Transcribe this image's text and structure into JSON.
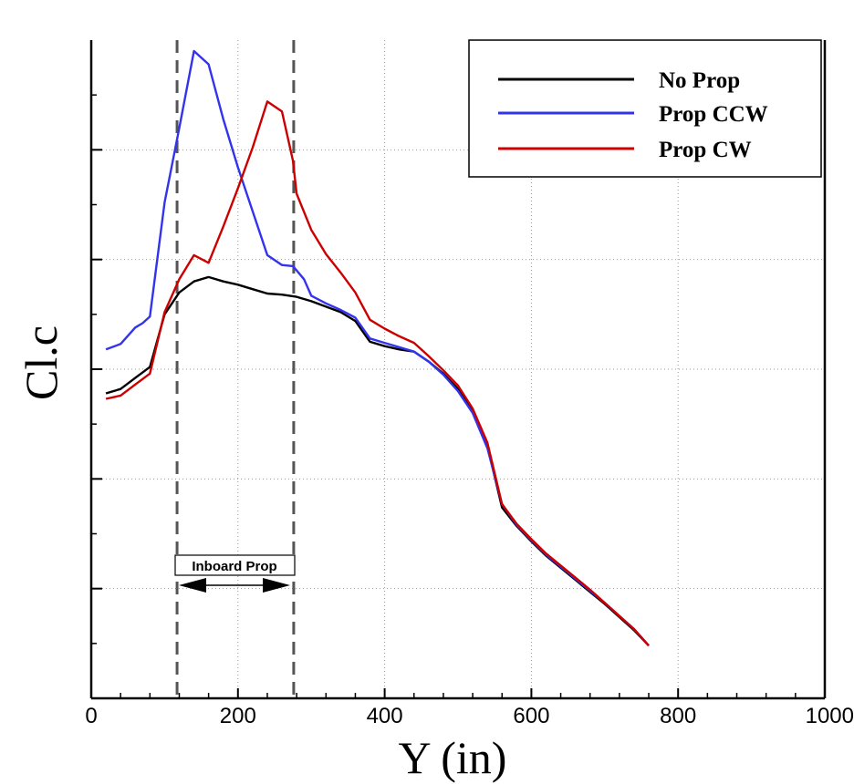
{
  "chart_data": {
    "type": "line",
    "title": "",
    "xlabel": "Y (in)",
    "ylabel": "Cl.c",
    "xlim": [
      0,
      1000
    ],
    "ylim": [
      0,
      6
    ],
    "xticks": [
      0,
      200,
      400,
      600,
      800,
      1000
    ],
    "xtick_labels": [
      "0",
      "200",
      "400",
      "600",
      "800",
      "1000"
    ],
    "yticks_major": [
      1,
      2,
      3,
      4,
      5
    ],
    "yticks_minor": [
      0.5,
      1.5,
      2.5,
      3.5,
      4.5,
      5.5
    ],
    "grid": true,
    "legend_position": "top-right",
    "series": [
      {
        "name": "No Prop",
        "color": "#000000",
        "x": [
          20,
          40,
          60,
          80,
          100,
          120,
          140,
          160,
          180,
          200,
          220,
          240,
          260,
          280,
          300,
          320,
          340,
          360,
          380,
          400,
          420,
          440,
          460,
          480,
          500,
          520,
          540,
          560,
          580,
          600,
          620,
          640,
          660,
          680,
          700,
          720,
          740,
          760
        ],
        "y": [
          2.78,
          2.82,
          2.92,
          3.02,
          3.5,
          3.7,
          3.8,
          3.84,
          3.8,
          3.77,
          3.73,
          3.69,
          3.68,
          3.66,
          3.62,
          3.57,
          3.52,
          3.44,
          3.25,
          3.21,
          3.18,
          3.16,
          3.07,
          2.96,
          2.82,
          2.62,
          2.3,
          1.74,
          1.57,
          1.43,
          1.3,
          1.19,
          1.08,
          0.97,
          0.86,
          0.74,
          0.62,
          0.48
        ]
      },
      {
        "name": "Prop CCW",
        "color": "#3333ee",
        "x": [
          20,
          40,
          60,
          70,
          80,
          100,
          120,
          140,
          160,
          180,
          200,
          220,
          240,
          260,
          275,
          290,
          300,
          320,
          340,
          360,
          380,
          400,
          420,
          440,
          460,
          480,
          500,
          520,
          540,
          560,
          580,
          600,
          620,
          640,
          660,
          680,
          700,
          720,
          740,
          760
        ],
        "y": [
          3.18,
          3.23,
          3.38,
          3.42,
          3.48,
          4.52,
          5.2,
          5.9,
          5.78,
          5.28,
          4.84,
          4.44,
          4.04,
          3.95,
          3.94,
          3.82,
          3.67,
          3.6,
          3.54,
          3.47,
          3.28,
          3.24,
          3.2,
          3.16,
          3.07,
          2.95,
          2.8,
          2.6,
          2.28,
          1.77,
          1.58,
          1.44,
          1.31,
          1.2,
          1.09,
          0.98,
          0.87,
          0.75,
          0.63,
          0.48
        ]
      },
      {
        "name": "Prop CW",
        "color": "#cc0000",
        "x": [
          20,
          40,
          60,
          80,
          100,
          120,
          140,
          160,
          180,
          200,
          220,
          240,
          260,
          275,
          280,
          300,
          320,
          340,
          360,
          380,
          400,
          420,
          440,
          460,
          480,
          500,
          520,
          540,
          560,
          580,
          600,
          620,
          640,
          660,
          680,
          700,
          720,
          740,
          760
        ],
        "y": [
          2.73,
          2.76,
          2.86,
          2.96,
          3.52,
          3.82,
          4.04,
          3.97,
          4.3,
          4.65,
          5.02,
          5.44,
          5.35,
          4.9,
          4.6,
          4.27,
          4.05,
          3.88,
          3.7,
          3.45,
          3.37,
          3.3,
          3.24,
          3.12,
          2.99,
          2.85,
          2.64,
          2.33,
          1.77,
          1.59,
          1.45,
          1.32,
          1.21,
          1.1,
          0.99,
          0.87,
          0.75,
          0.63,
          0.48
        ]
      }
    ],
    "reference_lines": [
      {
        "x": 117,
        "style": "dashed",
        "color": "#555555"
      },
      {
        "x": 276,
        "style": "dashed",
        "color": "#555555"
      }
    ],
    "annotations": [
      {
        "text": "Inboard Prop",
        "x_start": 117,
        "x_end": 276,
        "type": "double-arrow"
      }
    ]
  }
}
